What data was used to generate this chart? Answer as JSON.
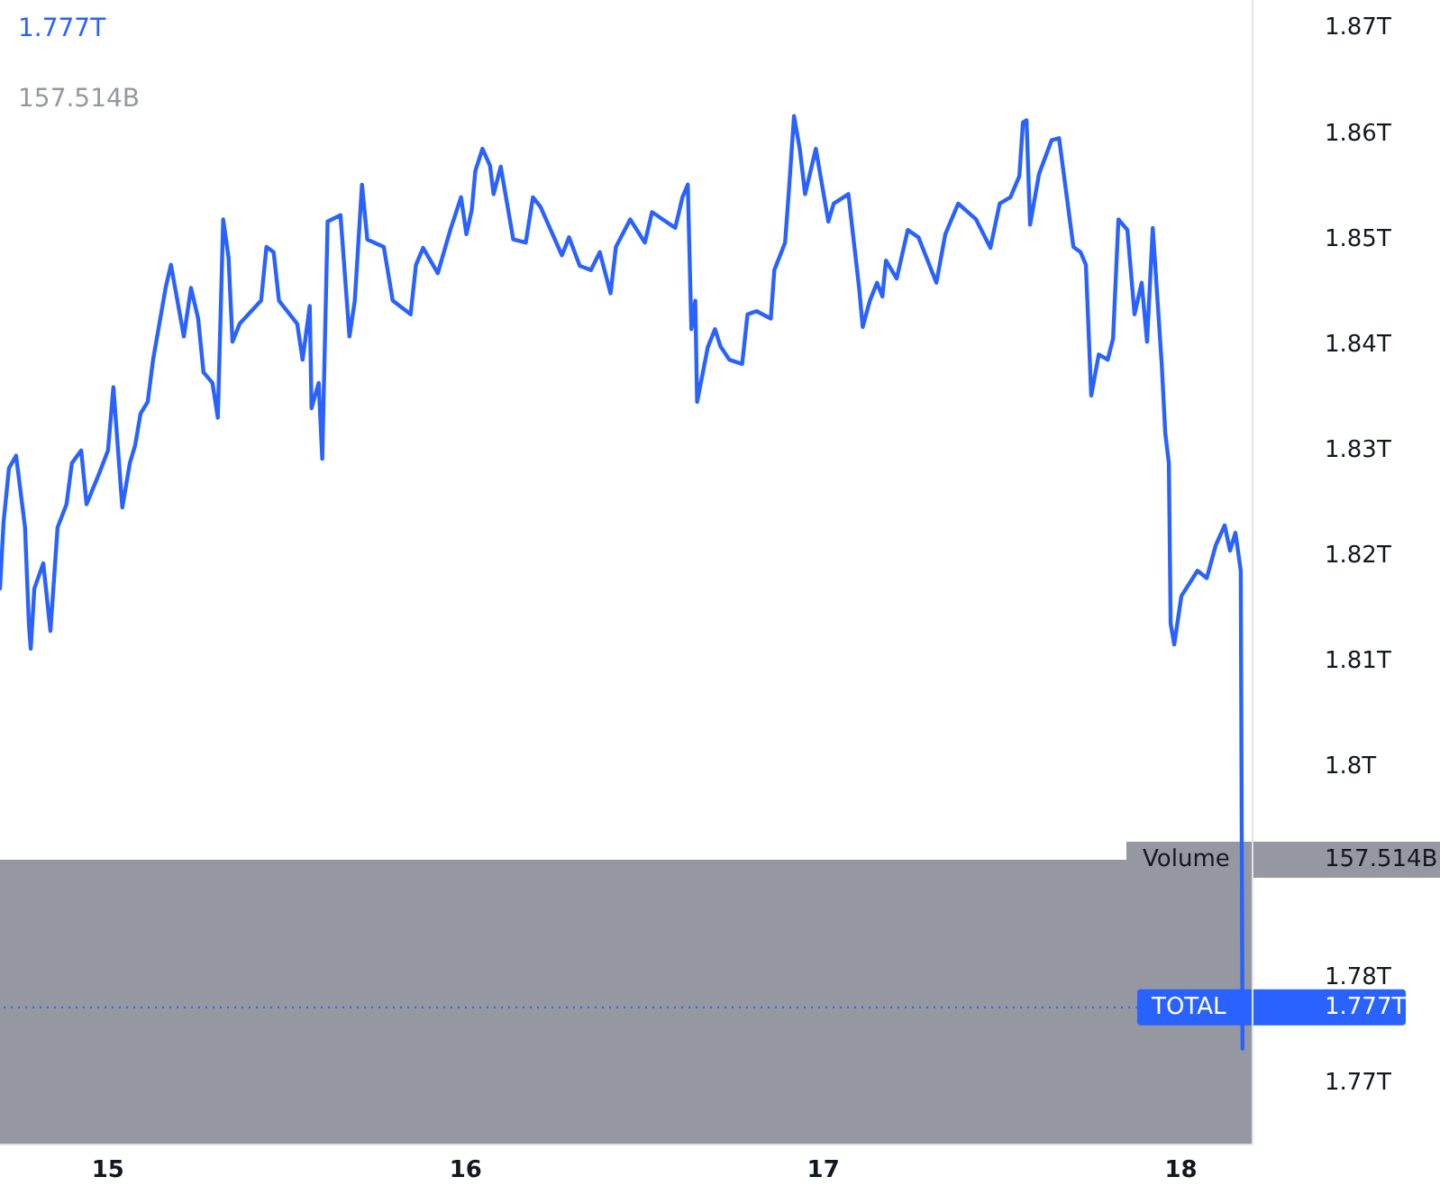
{
  "chart_data": {
    "type": "line",
    "x": [
      14.698,
      14.708,
      14.723,
      14.743,
      14.768,
      14.779,
      14.784,
      14.794,
      14.819,
      14.839,
      14.859,
      14.884,
      14.899,
      14.925,
      14.94,
      14.975,
      15,
      15.015,
      15.04,
      15.061,
      15.076,
      15.091,
      15.111,
      15.126,
      15.141,
      15.161,
      15.176,
      15.212,
      15.232,
      15.252,
      15.267,
      15.292,
      15.307,
      15.322,
      15.337,
      15.348,
      15.368,
      15.428,
      15.443,
      15.463,
      15.478,
      15.529,
      15.544,
      15.564,
      15.569,
      15.589,
      15.599,
      15.614,
      15.65,
      15.675,
      15.69,
      15.71,
      15.725,
      15.771,
      15.796,
      15.846,
      15.861,
      15.881,
      15.922,
      15.957,
      15.987,
      16.002,
      16.017,
      16.027,
      16.047,
      16.068,
      16.078,
      16.098,
      16.133,
      16.168,
      16.188,
      16.209,
      16.269,
      16.289,
      16.319,
      16.35,
      16.375,
      16.405,
      16.42,
      16.46,
      16.501,
      16.521,
      16.551,
      16.586,
      16.606,
      16.621,
      16.631,
      16.642,
      16.647,
      16.677,
      16.697,
      16.712,
      16.737,
      16.773,
      16.788,
      16.813,
      16.853,
      16.863,
      16.893,
      16.903,
      16.918,
      16.934,
      16.949,
      16.979,
      17.014,
      17.029,
      17.07,
      17.1,
      17.11,
      17.13,
      17.15,
      17.165,
      17.175,
      17.205,
      17.236,
      17.266,
      17.316,
      17.341,
      17.377,
      17.427,
      17.467,
      17.493,
      17.523,
      17.548,
      17.558,
      17.568,
      17.578,
      17.603,
      17.638,
      17.659,
      17.699,
      17.719,
      17.734,
      17.749,
      17.77,
      17.795,
      17.81,
      17.825,
      17.85,
      17.87,
      17.89,
      17.905,
      17.921,
      17.946,
      17.956,
      17.966,
      17.971,
      17.981,
      18.001,
      18.046,
      18.072,
      18.097,
      18.122,
      18.137,
      18.152,
      18.167,
      18.172
    ],
    "series": [
      {
        "name": "TOTAL",
        "color": "#2962ff",
        "values": [
          1.8167,
          1.823,
          1.8281,
          1.8293,
          1.8225,
          1.8132,
          1.811,
          1.8167,
          1.8191,
          1.8127,
          1.8225,
          1.8247,
          1.8286,
          1.8298,
          1.8247,
          1.8276,
          1.8298,
          1.8358,
          1.8244,
          1.8286,
          1.8303,
          1.8333,
          1.8344,
          1.8384,
          1.8413,
          1.8452,
          1.8474,
          1.8406,
          1.8452,
          1.8423,
          1.8372,
          1.8362,
          1.8329,
          1.8517,
          1.8481,
          1.8401,
          1.8418,
          1.844,
          1.8491,
          1.8486,
          1.844,
          1.8418,
          1.8384,
          1.8435,
          1.8338,
          1.8362,
          1.829,
          1.8515,
          1.8521,
          1.8406,
          1.844,
          1.855,
          1.8498,
          1.8491,
          1.844,
          1.8427,
          1.8474,
          1.849,
          1.8466,
          1.8507,
          1.8538,
          1.8503,
          1.8526,
          1.8563,
          1.8584,
          1.8568,
          1.8541,
          1.8567,
          1.8498,
          1.8495,
          1.8538,
          1.8529,
          1.8483,
          1.85,
          1.8473,
          1.8469,
          1.8486,
          1.8447,
          1.8491,
          1.8517,
          1.8495,
          1.8524,
          1.8517,
          1.8509,
          1.8538,
          1.855,
          1.8413,
          1.844,
          1.8344,
          1.8396,
          1.8413,
          1.8397,
          1.8384,
          1.838,
          1.8427,
          1.843,
          1.8423,
          1.8469,
          1.8495,
          1.8541,
          1.8615,
          1.8584,
          1.8541,
          1.8584,
          1.8515,
          1.8532,
          1.8541,
          1.8452,
          1.8415,
          1.844,
          1.8457,
          1.8444,
          1.8478,
          1.8461,
          1.8507,
          1.85,
          1.8457,
          1.8503,
          1.8532,
          1.8517,
          1.849,
          1.8532,
          1.8538,
          1.8558,
          1.8609,
          1.8611,
          1.8512,
          1.856,
          1.8592,
          1.8594,
          1.8491,
          1.8486,
          1.8474,
          1.835,
          1.8389,
          1.8384,
          1.8404,
          1.8517,
          1.8507,
          1.8427,
          1.8457,
          1.8401,
          1.8509,
          1.838,
          1.8314,
          1.8286,
          1.8134,
          1.8114,
          1.816,
          1.8184,
          1.8177,
          1.8208,
          1.8227,
          1.8203,
          1.822,
          1.8184,
          1.7731
        ]
      }
    ],
    "xlim": [
      14.698,
      18.2
    ],
    "xticks": [
      15,
      16,
      17,
      18
    ],
    "ylim": [
      1.764,
      1.8725
    ],
    "yticks": [
      {
        "value": 1.77,
        "label": "1.77T"
      },
      {
        "value": 1.78,
        "label": "1.78T"
      },
      {
        "value": 1.8,
        "label": "1.8T"
      },
      {
        "value": 1.81,
        "label": "1.81T"
      },
      {
        "value": 1.82,
        "label": "1.82T"
      },
      {
        "value": 1.83,
        "label": "1.83T"
      },
      {
        "value": 1.84,
        "label": "1.84T"
      },
      {
        "value": 1.85,
        "label": "1.85T"
      },
      {
        "value": 1.86,
        "label": "1.86T"
      },
      {
        "value": 1.87,
        "label": "1.87T"
      }
    ],
    "ref_lines": [
      {
        "axis": "y",
        "value": 1.777,
        "color": "#2962ff",
        "line_style": "dotted"
      }
    ],
    "bands": [
      {
        "axis": "y",
        "from": 1.764,
        "to": 1.791,
        "label": "Volume",
        "color": "#9598a1"
      }
    ],
    "annotations": [
      "1.777T",
      "157.514B",
      "157.514B",
      "1.777T"
    ],
    "grid": false
  }
}
